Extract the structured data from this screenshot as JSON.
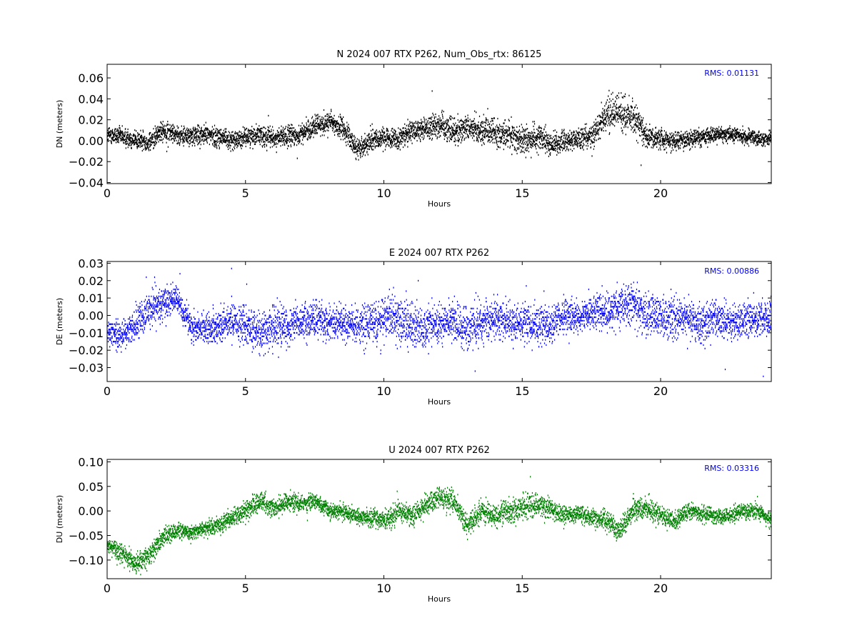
{
  "figure": {
    "background": "#ffffff"
  },
  "chart_data": [
    {
      "type": "scatter",
      "title": "N 2024 007 RTX  P262, Num_Obs_rtx: 86125",
      "xlabel": "Hours",
      "ylabel": "DN (meters)",
      "xlim": [
        0,
        24
      ],
      "ylim": [
        -0.041,
        0.073
      ],
      "xticks": [
        0,
        5,
        10,
        15,
        20
      ],
      "xtick_labels": [
        "0",
        "5",
        "10",
        "15",
        "20"
      ],
      "yticks": [
        -0.04,
        -0.02,
        0.0,
        0.02,
        0.04,
        0.06
      ],
      "ytick_labels": [
        "−0.04",
        "−0.02",
        "0.00",
        "0.02",
        "0.04",
        "0.06"
      ],
      "color": "#000000",
      "rms_text": "RMS:  0.01131",
      "rms_color": "#0000ff",
      "series": [
        {
          "x": [
            0,
            0.5,
            1,
            1.5,
            2,
            2.5,
            3,
            3.5,
            4,
            4.5,
            5,
            5.5,
            6,
            6.5,
            7,
            7.5,
            8,
            8.5,
            9,
            9.5,
            10,
            10.5,
            11,
            11.5,
            12,
            12.5,
            13,
            13.5,
            14,
            14.5,
            15,
            15.5,
            16,
            16.5,
            17,
            17.5,
            18,
            18.5,
            19,
            19.5,
            20,
            20.5,
            21,
            21.5,
            22,
            22.5,
            23,
            23.5,
            24
          ],
          "y": [
            0.006,
            0.004,
            0.001,
            -0.002,
            0.01,
            0.006,
            0.004,
            0.006,
            0.004,
            0.0,
            0.004,
            0.006,
            0.002,
            0.004,
            0.006,
            0.014,
            0.018,
            0.012,
            -0.008,
            0.0,
            0.004,
            0.002,
            0.008,
            0.012,
            0.016,
            0.01,
            0.012,
            0.01,
            0.008,
            0.006,
            0.0,
            0.004,
            -0.004,
            0.0,
            0.002,
            0.004,
            0.024,
            0.026,
            0.024,
            0.004,
            0.002,
            0.0,
            0.002,
            0.004,
            0.006,
            0.006,
            0.004,
            0.002,
            0.002
          ],
          "spread": [
            0.01,
            0.011,
            0.012,
            0.012,
            0.013,
            0.011,
            0.011,
            0.012,
            0.012,
            0.01,
            0.011,
            0.012,
            0.012,
            0.013,
            0.012,
            0.012,
            0.013,
            0.013,
            0.012,
            0.011,
            0.012,
            0.013,
            0.014,
            0.014,
            0.016,
            0.016,
            0.016,
            0.016,
            0.015,
            0.016,
            0.017,
            0.016,
            0.014,
            0.012,
            0.012,
            0.014,
            0.02,
            0.022,
            0.02,
            0.014,
            0.012,
            0.011,
            0.01,
            0.01,
            0.009,
            0.008,
            0.008,
            0.008,
            0.008
          ]
        }
      ]
    },
    {
      "type": "scatter",
      "title": "E 2024 007 RTX  P262",
      "xlabel": "Hours",
      "ylabel": "DE (meters)",
      "xlim": [
        0,
        24
      ],
      "ylim": [
        -0.038,
        0.031
      ],
      "xticks": [
        0,
        5,
        10,
        15,
        20
      ],
      "xtick_labels": [
        "0",
        "5",
        "10",
        "15",
        "20"
      ],
      "yticks": [
        -0.03,
        -0.02,
        -0.01,
        0.0,
        0.01,
        0.02,
        0.03
      ],
      "ytick_labels": [
        "−0.03",
        "−0.02",
        "−0.01",
        "0.00",
        "0.01",
        "0.02",
        "0.03"
      ],
      "color": "#0000ff",
      "rms_text": "RMS:  0.00886",
      "rms_color": "#0000ff",
      "series": [
        {
          "x": [
            0,
            0.5,
            1,
            1.5,
            2,
            2.5,
            3,
            3.5,
            4,
            4.5,
            5,
            5.5,
            6,
            6.5,
            7,
            7.5,
            8,
            8.5,
            9,
            9.5,
            10,
            10.5,
            11,
            11.5,
            12,
            12.5,
            13,
            13.5,
            14,
            14.5,
            15,
            15.5,
            16,
            16.5,
            17,
            17.5,
            18,
            18.5,
            19,
            19.5,
            20,
            20.5,
            21,
            21.5,
            22,
            22.5,
            23,
            23.5,
            24
          ],
          "y": [
            -0.01,
            -0.012,
            -0.006,
            0.004,
            0.006,
            0.01,
            -0.006,
            -0.008,
            -0.006,
            -0.004,
            -0.006,
            -0.01,
            -0.006,
            -0.006,
            -0.004,
            -0.002,
            -0.004,
            -0.004,
            -0.006,
            -0.004,
            -0.002,
            -0.002,
            -0.006,
            -0.008,
            -0.004,
            -0.004,
            -0.008,
            -0.004,
            -0.002,
            -0.004,
            -0.004,
            -0.006,
            -0.006,
            0.0,
            -0.002,
            0.002,
            0.002,
            0.004,
            0.006,
            0.0,
            0.0,
            0.0,
            -0.002,
            -0.004,
            -0.002,
            -0.004,
            -0.002,
            -0.002,
            -0.002
          ],
          "spread": [
            0.011,
            0.012,
            0.012,
            0.012,
            0.012,
            0.011,
            0.01,
            0.011,
            0.012,
            0.013,
            0.014,
            0.014,
            0.014,
            0.013,
            0.012,
            0.012,
            0.012,
            0.013,
            0.014,
            0.016,
            0.016,
            0.016,
            0.015,
            0.014,
            0.014,
            0.015,
            0.016,
            0.015,
            0.014,
            0.014,
            0.014,
            0.013,
            0.012,
            0.012,
            0.012,
            0.012,
            0.013,
            0.015,
            0.016,
            0.016,
            0.016,
            0.014,
            0.013,
            0.013,
            0.013,
            0.012,
            0.012,
            0.012,
            0.012
          ]
        }
      ]
    },
    {
      "type": "scatter",
      "title": "U 2024 007 RTX  P262",
      "xlabel": "Hours",
      "ylabel": "DU (meters)",
      "xlim": [
        0,
        24
      ],
      "ylim": [
        -0.138,
        0.105
      ],
      "xticks": [
        0,
        5,
        10,
        15,
        20
      ],
      "xtick_labels": [
        "0",
        "5",
        "10",
        "15",
        "20"
      ],
      "yticks": [
        -0.1,
        -0.05,
        0.0,
        0.05,
        0.1
      ],
      "ytick_labels": [
        "−0.10",
        "−0.05",
        "0.00",
        "0.05",
        "0.10"
      ],
      "color": "#008000",
      "rms_text": "RMS:  0.03316",
      "rms_color": "#0000ff",
      "series": [
        {
          "x": [
            0,
            0.5,
            1,
            1.5,
            2,
            2.5,
            3,
            3.5,
            4,
            4.5,
            5,
            5.5,
            6,
            6.5,
            7,
            7.5,
            8,
            8.5,
            9,
            9.5,
            10,
            10.5,
            11,
            11.5,
            12,
            12.5,
            13,
            13.5,
            14,
            14.5,
            15,
            15.5,
            16,
            16.5,
            17,
            17.5,
            18,
            18.5,
            19,
            19.5,
            20,
            20.5,
            21,
            21.5,
            22,
            22.5,
            23,
            23.5,
            24
          ],
          "y": [
            -0.07,
            -0.085,
            -0.11,
            -0.09,
            -0.055,
            -0.04,
            -0.045,
            -0.035,
            -0.03,
            -0.015,
            0.0,
            0.02,
            0.005,
            0.02,
            0.015,
            0.02,
            0.0,
            0.0,
            -0.01,
            -0.015,
            -0.02,
            0.0,
            -0.01,
            0.01,
            0.03,
            0.02,
            -0.03,
            0.0,
            -0.01,
            0.0,
            0.01,
            0.01,
            0.005,
            -0.01,
            -0.005,
            -0.015,
            -0.02,
            -0.04,
            0.005,
            0.005,
            -0.01,
            -0.02,
            0.0,
            -0.005,
            -0.01,
            -0.01,
            0.0,
            0.0,
            -0.02
          ],
          "spread": [
            0.02,
            0.025,
            0.025,
            0.025,
            0.025,
            0.02,
            0.02,
            0.02,
            0.02,
            0.022,
            0.025,
            0.025,
            0.022,
            0.022,
            0.02,
            0.02,
            0.02,
            0.02,
            0.02,
            0.022,
            0.025,
            0.025,
            0.025,
            0.025,
            0.028,
            0.03,
            0.03,
            0.028,
            0.028,
            0.03,
            0.032,
            0.028,
            0.025,
            0.022,
            0.02,
            0.022,
            0.025,
            0.025,
            0.03,
            0.028,
            0.025,
            0.022,
            0.02,
            0.02,
            0.02,
            0.02,
            0.02,
            0.02,
            0.02
          ]
        }
      ]
    }
  ]
}
